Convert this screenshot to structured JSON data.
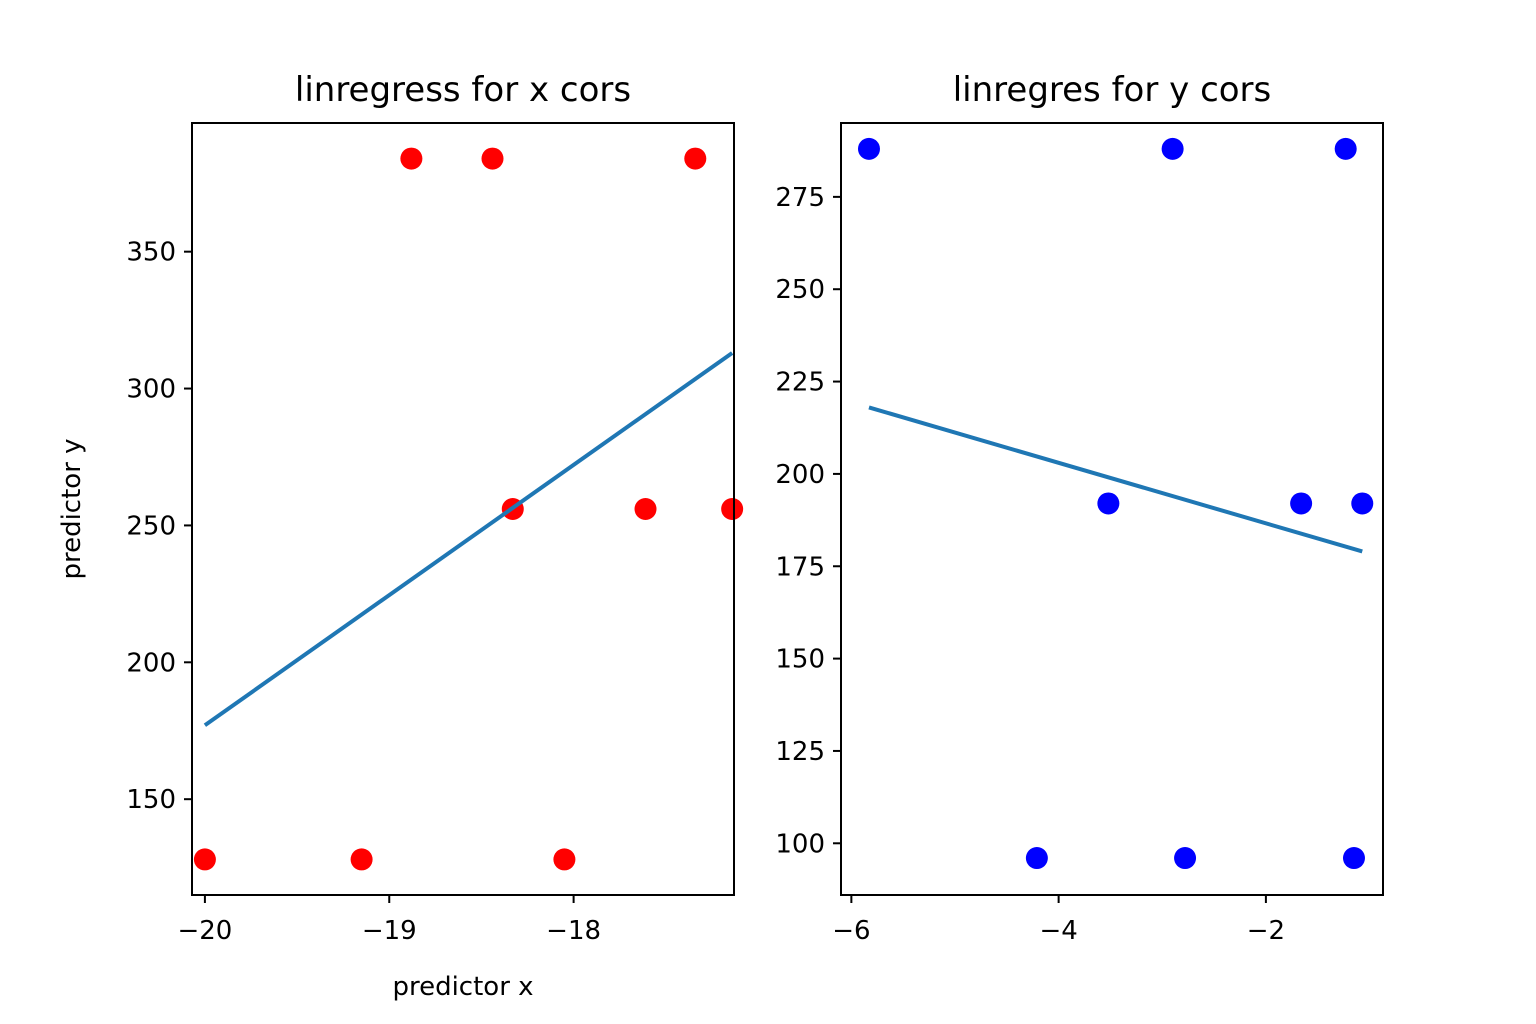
{
  "chart_data": [
    {
      "type": "scatter",
      "title": "linregress for x cors",
      "xlabel": "predictor x",
      "ylabel": "predictor y",
      "xlim": [
        -20.07,
        -17.13
      ],
      "ylim": [
        115,
        397
      ],
      "xticks": [
        -20,
        -19,
        -18
      ],
      "xtick_labels": [
        "−20",
        "−19",
        "−18"
      ],
      "yticks": [
        150,
        200,
        250,
        300,
        350
      ],
      "ytick_labels": [
        "150",
        "200",
        "250",
        "300",
        "350"
      ],
      "grid": false,
      "points": {
        "color": "#ff0000",
        "x": [
          -20.0,
          -19.15,
          -18.05,
          -18.88,
          -18.44,
          -17.34,
          -18.33,
          -17.61,
          -17.14
        ],
        "y": [
          128,
          128,
          128,
          384,
          384,
          384,
          256,
          256,
          256
        ]
      },
      "line": {
        "color": "#1f77b4",
        "x": [
          -20.0,
          -17.14
        ],
        "y": [
          177,
          313
        ]
      }
    },
    {
      "type": "scatter",
      "title": "linregres for y cors",
      "xlabel": "",
      "ylabel": "",
      "xlim": [
        -6.1,
        -0.87
      ],
      "ylim": [
        86,
        295
      ],
      "xticks": [
        -6,
        -4,
        -2
      ],
      "xtick_labels": [
        "−6",
        "−4",
        "−2"
      ],
      "yticks": [
        100,
        125,
        150,
        175,
        200,
        225,
        250,
        275
      ],
      "ytick_labels": [
        "100",
        "125",
        "150",
        "175",
        "200",
        "225",
        "250",
        "275"
      ],
      "grid": false,
      "points": {
        "color": "#0000ff",
        "x": [
          -5.83,
          -2.9,
          -1.23,
          -3.52,
          -1.66,
          -1.07,
          -4.21,
          -2.78,
          -1.15
        ],
        "y": [
          288,
          288,
          288,
          192,
          192,
          192,
          96,
          96,
          96
        ]
      },
      "line": {
        "color": "#1f77b4",
        "x": [
          -5.83,
          -1.07
        ],
        "y": [
          218,
          179
        ]
      }
    }
  ]
}
